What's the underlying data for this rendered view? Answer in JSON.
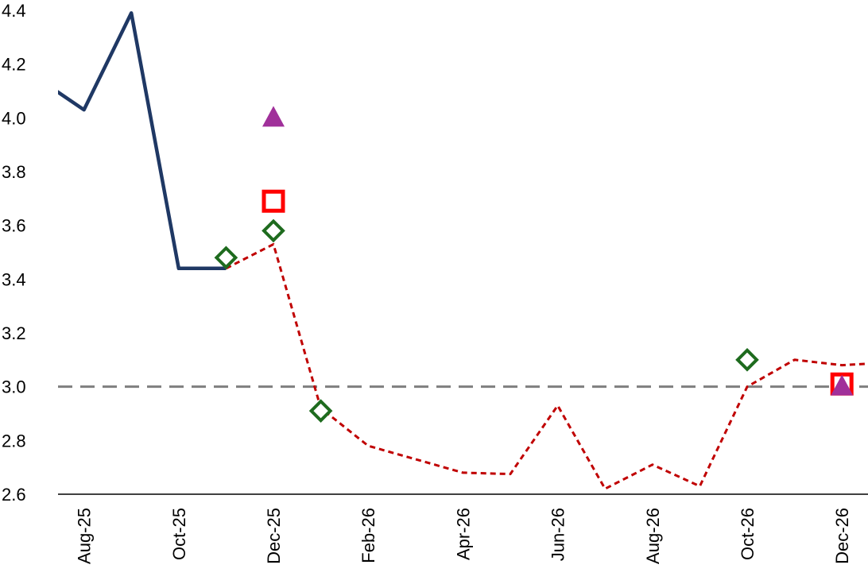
{
  "chart_data": {
    "type": "line",
    "title": "",
    "xlabel": "",
    "ylabel": "",
    "ylim": [
      2.6,
      4.4
    ],
    "yticks": [
      2.6,
      2.8,
      3.0,
      3.2,
      3.4,
      3.6,
      3.8,
      4.0,
      4.2,
      4.4
    ],
    "ytick_labels": [
      "2.6",
      "2.8",
      "3.0",
      "3.2",
      "3.4",
      "3.6",
      "3.8",
      "4.0",
      "4.2",
      "4.4"
    ],
    "categories": [
      "Jul-25",
      "Aug-25",
      "Sep-25",
      "Oct-25",
      "Nov-25",
      "Dec-25",
      "Jan-26",
      "Feb-26",
      "Mar-26",
      "Apr-26",
      "May-26",
      "Jun-26",
      "Jul-26",
      "Aug-26",
      "Sep-26",
      "Oct-26",
      "Nov-26",
      "Dec-26",
      "Jan-27"
    ],
    "xtick_labels": [
      "Aug-25",
      "Oct-25",
      "Dec-25",
      "Feb-26",
      "Apr-26",
      "Jun-26",
      "Aug-26",
      "Oct-26",
      "Dec-26"
    ],
    "grid": false,
    "legend": "none",
    "reference_line": {
      "y": 3.0,
      "style": "dashed",
      "color": "#7f7f7f"
    },
    "series": [
      {
        "style": "solid-line",
        "color": "#1f3864",
        "values": [
          4.15,
          4.03,
          4.39,
          3.44,
          3.44,
          null,
          null,
          null,
          null,
          null,
          null,
          null,
          null,
          null,
          null,
          null,
          null,
          null,
          null
        ]
      },
      {
        "style": "dotted-line",
        "color": "#c00000",
        "values": [
          null,
          null,
          null,
          null,
          3.44,
          3.53,
          2.92,
          2.78,
          2.73,
          2.68,
          2.675,
          2.93,
          2.62,
          2.71,
          2.63,
          3.0,
          3.1,
          3.08,
          3.09
        ]
      },
      {
        "style": "diamond-marker",
        "color": "#1e6b1e",
        "values": [
          null,
          null,
          null,
          null,
          3.48,
          3.58,
          2.91,
          null,
          null,
          null,
          null,
          null,
          null,
          null,
          null,
          3.1,
          null,
          null,
          null
        ]
      },
      {
        "style": "square-marker",
        "color": "#ff0000",
        "values": [
          null,
          null,
          null,
          null,
          null,
          3.69,
          null,
          null,
          null,
          null,
          null,
          null,
          null,
          null,
          null,
          null,
          null,
          3.01,
          null
        ]
      },
      {
        "style": "triangle-marker",
        "color": "#a0309a",
        "values": [
          null,
          null,
          null,
          null,
          null,
          4.0,
          null,
          null,
          null,
          null,
          null,
          null,
          null,
          null,
          null,
          null,
          null,
          3.0,
          null
        ]
      }
    ]
  }
}
